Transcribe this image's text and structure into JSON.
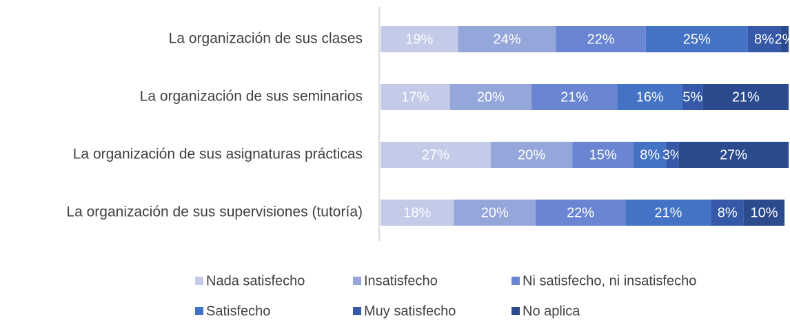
{
  "chart_data": {
    "type": "stacked-bar-horizontal",
    "categories": [
      "La organización de sus clases",
      "La organización de sus seminarios",
      "La organización de sus asignaturas prácticas",
      "La organización de sus supervisiones (tutoría)"
    ],
    "series": [
      {
        "name": "Nada satisfecho",
        "color": "#c3cbe9",
        "values": [
          19,
          17,
          27,
          18
        ],
        "value_labels": [
          "19%",
          "17%",
          "27%",
          "18%"
        ]
      },
      {
        "name": "Insatisfecho",
        "color": "#95a6db",
        "values": [
          24,
          20,
          20,
          20
        ],
        "value_labels": [
          "24%",
          "20%",
          "20%",
          "20%"
        ]
      },
      {
        "name": "Ni satisfecho, ni insatisfecho",
        "color": "#6a86d3",
        "values": [
          22,
          21,
          15,
          22
        ],
        "value_labels": [
          "22%",
          "21%",
          "15%",
          "22%"
        ]
      },
      {
        "name": "Satisfecho",
        "color": "#4472c4",
        "values": [
          25,
          16,
          8,
          21
        ],
        "value_labels": [
          "25%",
          "16%",
          "8%",
          "21%"
        ]
      },
      {
        "name": "Muy satisfecho",
        "color": "#3558a8",
        "values": [
          8,
          5,
          3,
          8
        ],
        "value_labels": [
          "8%",
          "5%",
          "3%",
          "8%"
        ]
      },
      {
        "name": "No aplica",
        "color": "#2c4a8e",
        "values": [
          2,
          21,
          27,
          10
        ],
        "value_labels": [
          "2%",
          "21%",
          "27%",
          "10%"
        ]
      }
    ],
    "legend": "bottom"
  }
}
